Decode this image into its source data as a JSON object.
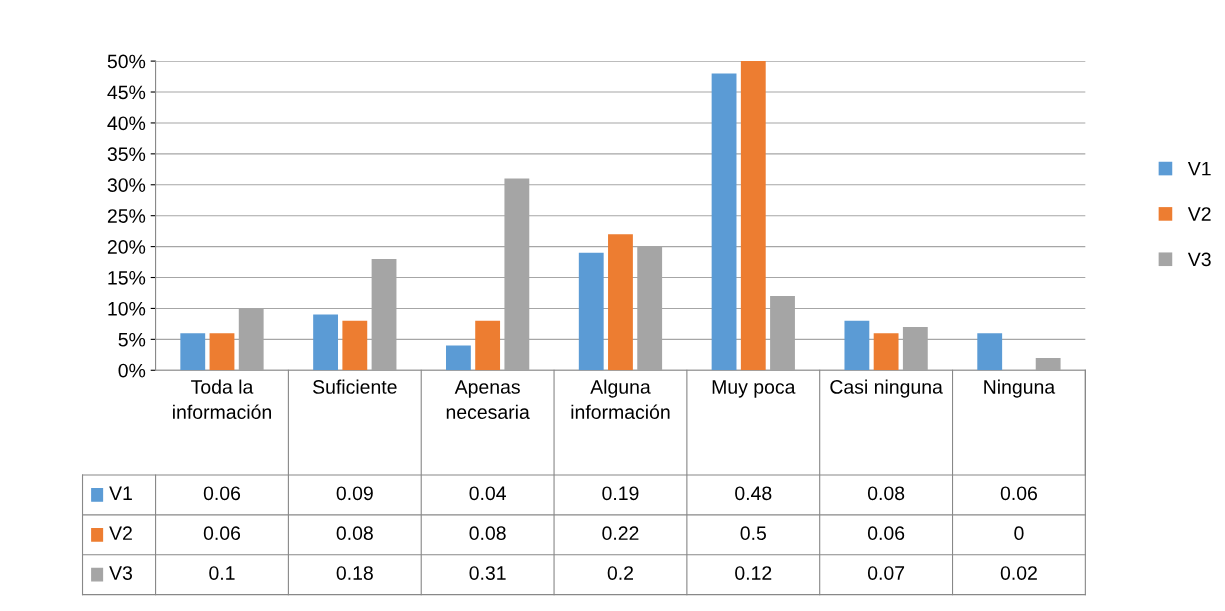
{
  "chart_data": {
    "type": "bar",
    "categories": [
      "Toda la información",
      "Suficiente",
      "Apenas necesaria",
      "Alguna información",
      "Muy poca",
      "Casi ninguna",
      "Ninguna"
    ],
    "series": [
      {
        "name": "V1",
        "color": "#5b9bd5",
        "values": [
          0.06,
          0.09,
          0.04,
          0.19,
          0.48,
          0.08,
          0.06
        ]
      },
      {
        "name": "V2",
        "color": "#ed7d31",
        "values": [
          0.06,
          0.08,
          0.08,
          0.22,
          0.5,
          0.06,
          0
        ]
      },
      {
        "name": "V3",
        "color": "#a5a5a5",
        "values": [
          0.1,
          0.18,
          0.31,
          0.2,
          0.12,
          0.07,
          0.02
        ]
      }
    ],
    "ylim": [
      0,
      0.5
    ],
    "yticks": [
      {
        "value": 0,
        "label": "0%"
      },
      {
        "value": 0.05,
        "label": "5%"
      },
      {
        "value": 0.1,
        "label": "10%"
      },
      {
        "value": 0.15,
        "label": "15%"
      },
      {
        "value": 0.2,
        "label": "20%"
      },
      {
        "value": 0.25,
        "label": "25%"
      },
      {
        "value": 0.3,
        "label": "30%"
      },
      {
        "value": 0.35,
        "label": "35%"
      },
      {
        "value": 0.4,
        "label": "40%"
      },
      {
        "value": 0.45,
        "label": "45%"
      },
      {
        "value": 0.5,
        "label": "50%"
      }
    ],
    "grid": "y",
    "legend": "right",
    "data_labels": true
  }
}
